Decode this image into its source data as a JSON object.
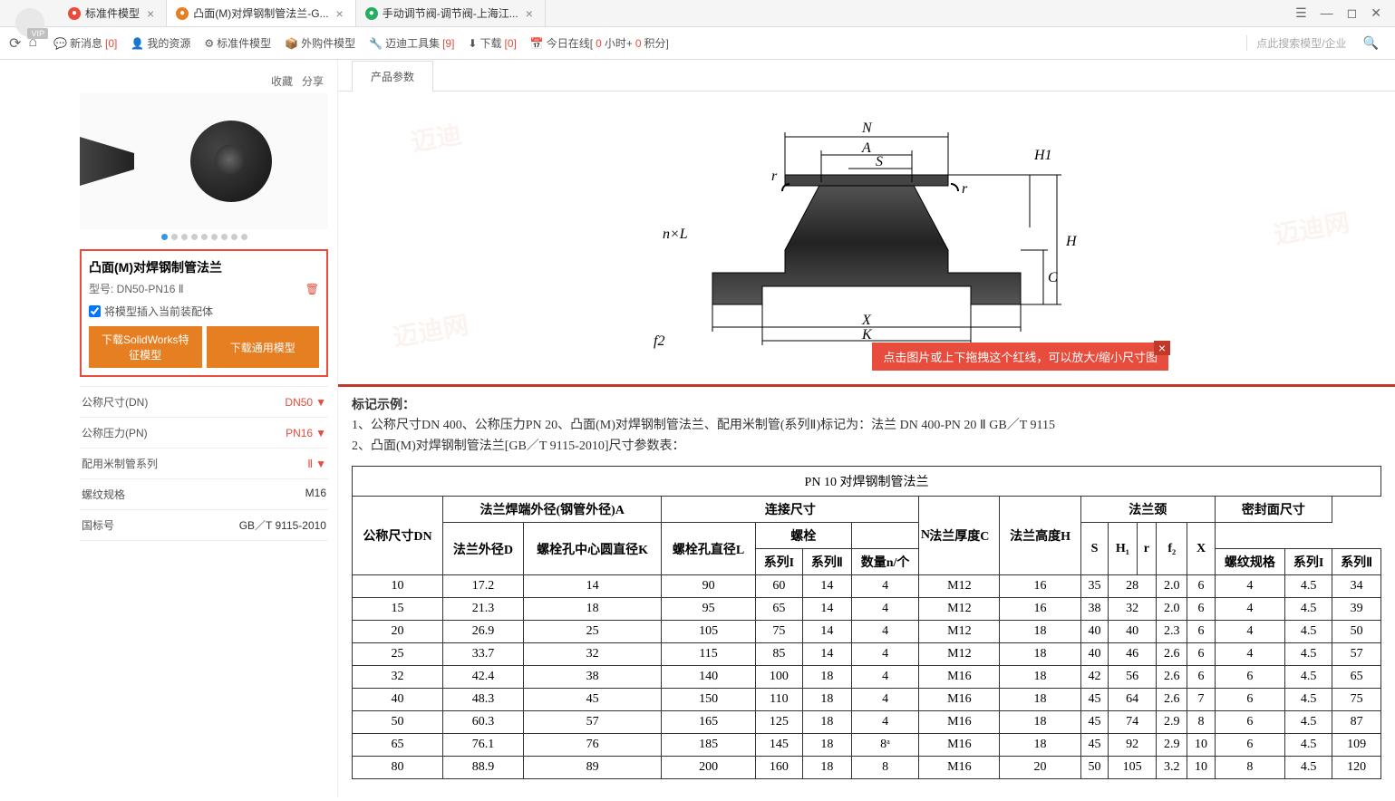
{
  "tabs": [
    {
      "title": "标准件模型",
      "icon": "red",
      "active": false
    },
    {
      "title": "凸面(M)对焊钢制管法兰-G...",
      "icon": "orange",
      "active": true
    },
    {
      "title": "手动调节阀-调节阀-上海江...",
      "icon": "green",
      "active": false
    }
  ],
  "toolbar": {
    "newMsg": "新消息",
    "newMsgCount": "[0]",
    "myRes": "我的资源",
    "stdModel": "标准件模型",
    "extModel": "外购件模型",
    "tools": "迈迪工具集",
    "toolsCount": "[9]",
    "download": "下载",
    "downloadCount": "[0]",
    "online": "今日在线[",
    "onlineH": "0",
    "onlineHS": "小时+ ",
    "onlineP": "0",
    "onlinePS": "积分]",
    "searchHint": "点此搜索模型/企业"
  },
  "sidebar": {
    "collect": "收藏",
    "share": "分享",
    "dotCount": 9,
    "activeDot": 0,
    "productTitle": "凸面(M)对焊钢制管法兰",
    "modelLabel": "型号: DN50-PN16 Ⅱ",
    "checkboxLabel": "将模型插入当前装配体",
    "btnSW": "下载SolidWorks特征模型",
    "btnGeneric": "下载通用模型",
    "params": [
      {
        "label": "公称尺寸(DN)",
        "value": "DN50",
        "dropdown": true
      },
      {
        "label": "公称压力(PN)",
        "value": "PN16",
        "dropdown": true
      },
      {
        "label": "配用米制管系列",
        "value": "Ⅱ",
        "dropdown": true
      },
      {
        "label": "螺纹规格",
        "value": "M16",
        "dropdown": false
      },
      {
        "label": "国标号",
        "value": "GB／T 9115-2010",
        "dropdown": false
      }
    ]
  },
  "content": {
    "tabName": "产品参数",
    "tooltip": "点击图片或上下拖拽这个红线，可以放大/缩小尺寸图",
    "notesTitle": "标记示例：",
    "notes": [
      "1、公称尺寸DN 400、公称压力PN 20、凸面(M)对焊钢制管法兰、配用米制管(系列Ⅱ)标记为：法兰 DN 400-PN 20 Ⅱ GB／T 9115",
      "2、凸面(M)对焊钢制管法兰[GB／T 9115-2010]尺寸参数表："
    ],
    "diagramLabels": {
      "N": "N",
      "A": "A",
      "S": "S",
      "H1": "H1",
      "nL": "n×L",
      "r": "r",
      "H": "H",
      "C": "C",
      "f2": "f2",
      "X": "X",
      "K": "K"
    }
  },
  "table": {
    "title": "PN 10 对焊钢制管法兰",
    "headerRow1": [
      "公称尺寸DN",
      "法兰焊端外径(钢管外径)A",
      "连接尺寸",
      "法兰厚度C",
      "法兰高度H",
      "法兰颈",
      "密封面尺寸"
    ],
    "headerRow2": [
      "法兰外径D",
      "螺栓孔中心圆直径K",
      "螺栓孔直径L",
      "螺栓",
      "N",
      "S",
      "H₁",
      "r",
      "f₂",
      "X"
    ],
    "headerRow3": [
      "系列I",
      "系列Ⅱ",
      "数量n/个",
      "螺纹规格",
      "系列I",
      "系列Ⅱ"
    ],
    "rows": [
      [
        "10",
        "17.2",
        "14",
        "90",
        "60",
        "14",
        "4",
        "M12",
        "16",
        "35",
        "28",
        "",
        "2.0",
        "6",
        "4",
        "4.5",
        "34"
      ],
      [
        "15",
        "21.3",
        "18",
        "95",
        "65",
        "14",
        "4",
        "M12",
        "16",
        "38",
        "32",
        "",
        "2.0",
        "6",
        "4",
        "4.5",
        "39"
      ],
      [
        "20",
        "26.9",
        "25",
        "105",
        "75",
        "14",
        "4",
        "M12",
        "18",
        "40",
        "40",
        "",
        "2.3",
        "6",
        "4",
        "4.5",
        "50"
      ],
      [
        "25",
        "33.7",
        "32",
        "115",
        "85",
        "14",
        "4",
        "M12",
        "18",
        "40",
        "46",
        "",
        "2.6",
        "6",
        "4",
        "4.5",
        "57"
      ],
      [
        "32",
        "42.4",
        "38",
        "140",
        "100",
        "18",
        "4",
        "M16",
        "18",
        "42",
        "56",
        "",
        "2.6",
        "6",
        "6",
        "4.5",
        "65"
      ],
      [
        "40",
        "48.3",
        "45",
        "150",
        "110",
        "18",
        "4",
        "M16",
        "18",
        "45",
        "64",
        "",
        "2.6",
        "7",
        "6",
        "4.5",
        "75"
      ],
      [
        "50",
        "60.3",
        "57",
        "165",
        "125",
        "18",
        "4",
        "M16",
        "18",
        "45",
        "74",
        "",
        "2.9",
        "8",
        "6",
        "4.5",
        "87"
      ],
      [
        "65",
        "76.1",
        "76",
        "185",
        "145",
        "18",
        "8ᵃ",
        "M16",
        "18",
        "45",
        "92",
        "",
        "2.9",
        "10",
        "6",
        "4.5",
        "109"
      ],
      [
        "80",
        "88.9",
        "89",
        "200",
        "160",
        "18",
        "8",
        "M16",
        "20",
        "50",
        "105",
        "",
        "3.2",
        "10",
        "8",
        "4.5",
        "120"
      ]
    ]
  }
}
